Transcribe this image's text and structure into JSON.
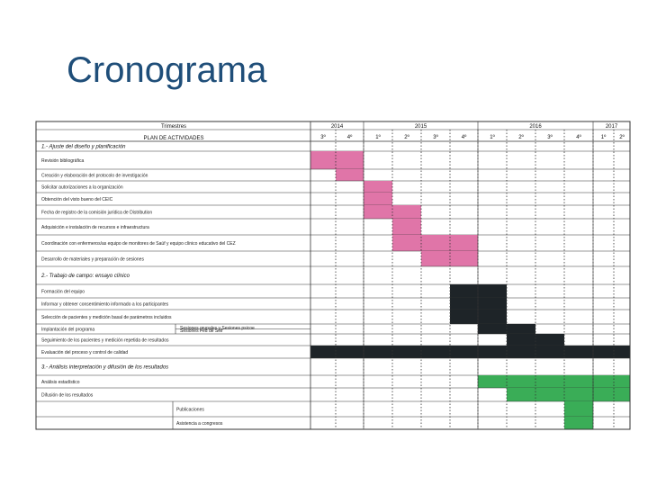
{
  "title": "Cronograma",
  "header": {
    "trimestres_label": "Trimestres",
    "plan_label": "PLAN DE ACTIVIDADES",
    "years": [
      {
        "label": "2014",
        "start": 0,
        "span": 2
      },
      {
        "label": "2015",
        "start": 2,
        "span": 4
      },
      {
        "label": "2016",
        "start": 6,
        "span": 4
      },
      {
        "label": "2017",
        "start": 10,
        "span": 2
      }
    ],
    "quarters": [
      "3º",
      "4º",
      "1º",
      "2º",
      "3º",
      "4º",
      "1º",
      "2º",
      "3º",
      "4º",
      "1º",
      "2º"
    ]
  },
  "colors": {
    "pink": "#e075a8",
    "dark": "#1e2428",
    "green": "#3aad57",
    "border": "#333333"
  },
  "rows": [
    {
      "label": "1.- Ajuste del diseño y planificación",
      "section": true,
      "bars": []
    },
    {
      "label": "Revisión bibliográfica",
      "bars": [
        {
          "s": 0,
          "e": 2,
          "c": "pink"
        }
      ]
    },
    {
      "label": "Creación y elaboración del protocolo de investigación",
      "bars": [
        {
          "s": 1,
          "e": 2,
          "c": "pink"
        }
      ]
    },
    {
      "label": "Solicitar autorizaciones a la organización",
      "bars": [
        {
          "s": 2,
          "e": 3,
          "c": "pink"
        }
      ]
    },
    {
      "label": "Obtención del visto bueno del CEIC",
      "bars": [
        {
          "s": 2,
          "e": 3,
          "c": "pink"
        }
      ]
    },
    {
      "label": "Fecha de registro de la comisión jurídica de Distribution",
      "bars": [
        {
          "s": 2,
          "e": 4,
          "c": "pink"
        }
      ]
    },
    {
      "label": "Adquisición e instalación de recursos e infraestructura",
      "bars": [
        {
          "s": 3,
          "e": 4,
          "c": "pink"
        }
      ]
    },
    {
      "label": "Coordinación con enfermeros/as equipo de monitores de Saúf y equipo clínico educativo del CEZ",
      "bars": [
        {
          "s": 3,
          "e": 6,
          "c": "pink"
        }
      ]
    },
    {
      "label": "Desarrollo de materiales y preparación de sesiones",
      "bars": [
        {
          "s": 4,
          "e": 6,
          "c": "pink"
        }
      ]
    },
    {
      "label": "2.- Trabajo de campo: ensayo clínico",
      "section": true,
      "bars": []
    },
    {
      "label": "Formación del equipo",
      "bars": [
        {
          "s": 5,
          "e": 7,
          "c": "dark"
        }
      ]
    },
    {
      "label": "Informar y obtener consentimiento informado a los participantes",
      "bars": [
        {
          "s": 5,
          "e": 7,
          "c": "dark"
        }
      ]
    },
    {
      "label": "Selección de pacientes y medición basal de parámetros incluidos",
      "bars": [
        {
          "s": 5,
          "e": 7,
          "c": "dark"
        }
      ]
    },
    {
      "label": "Implantación del programa",
      "sub": [
        "Sesiones grupales y Sesiones psicoe",
        "Sesiones Fed de Seif"
      ],
      "bars": [
        {
          "s": 6,
          "e": 7,
          "c": "dark"
        },
        {
          "s": 7,
          "e": 8,
          "c": "dark"
        }
      ]
    },
    {
      "label": "Seguimiento de los pacientes y medición repetida de resultados",
      "bars": [
        {
          "s": 7,
          "e": 9,
          "c": "dark"
        }
      ]
    },
    {
      "label": "Evaluación del proceso y control de calidad",
      "bars": [
        {
          "s": 0,
          "e": 12,
          "c": "dark"
        }
      ]
    },
    {
      "label": "3.- Análisis interpretación y difusión de los resultados",
      "section": true,
      "bars": []
    },
    {
      "label": "Análisis estadístico",
      "bars": [
        {
          "s": 6,
          "e": 12,
          "c": "green"
        }
      ]
    },
    {
      "label": "Difusión de los resultados",
      "bars": [
        {
          "s": 7,
          "e": 12,
          "c": "green"
        }
      ]
    },
    {
      "label": "",
      "sub": [
        "Publicaciones"
      ],
      "bars": [
        {
          "s": 9,
          "e": 10,
          "c": "green"
        }
      ]
    },
    {
      "label": "",
      "sub": [
        "Asistencia a congresos"
      ],
      "bars": [
        {
          "s": 9,
          "e": 10,
          "c": "green"
        }
      ]
    }
  ]
}
